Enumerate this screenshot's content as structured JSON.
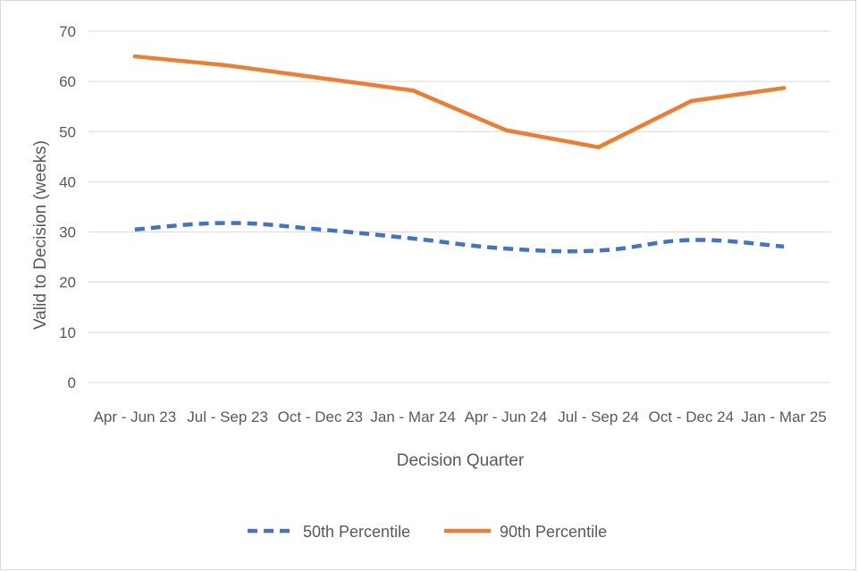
{
  "chart_data": {
    "type": "line",
    "title": "",
    "xlabel": "Decision Quarter",
    "ylabel": "Valid to Decision (weeks)",
    "ylim": [
      0,
      70
    ],
    "yticks": [
      0,
      10,
      20,
      30,
      40,
      50,
      60,
      70
    ],
    "grid": true,
    "legend_position": "bottom",
    "categories": [
      "Apr - Jun 23",
      "Jul - Sep 23",
      "Oct - Dec 23",
      "Jan - Mar 24",
      "Apr - Jun 24",
      "Jul - Sep 24",
      "Oct - Dec 24",
      "Jan - Mar 25"
    ],
    "series": [
      {
        "name": "50th Percentile",
        "color": "#4472C4",
        "style": "dashed",
        "values": [
          30.5,
          31.8,
          30.5,
          28.7,
          26.7,
          26.3,
          28.4,
          27.1
        ]
      },
      {
        "name": "90th Percentile",
        "color": "#ED7D31",
        "style": "solid",
        "values": [
          65.0,
          63.2,
          60.7,
          58.2,
          50.3,
          46.9,
          56.1,
          58.7
        ]
      }
    ]
  }
}
